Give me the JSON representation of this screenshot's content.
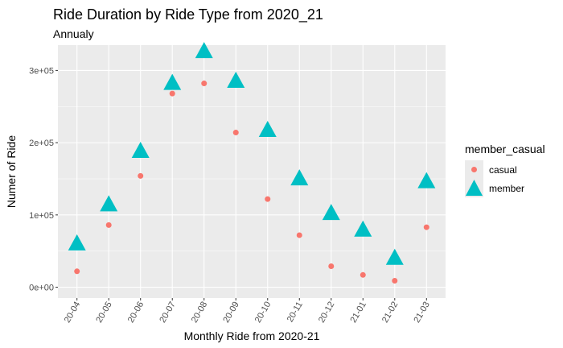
{
  "chart_data": {
    "type": "scatter",
    "title": "Ride Duration by Ride Type from 2020_21",
    "subtitle": "Annualy",
    "xlabel": "Monthly Ride from 2020-21",
    "ylabel": "Numer of Ride",
    "categories": [
      "20-04",
      "20-05",
      "20-06",
      "20-07",
      "20-08",
      "20-09",
      "20-10",
      "20-11",
      "20-12",
      "21-01",
      "21-02",
      "21-03"
    ],
    "y_ticks": [
      {
        "value": 0,
        "label": "0e+00"
      },
      {
        "value": 100000,
        "label": "1e+05"
      },
      {
        "value": 200000,
        "label": "2e+05"
      },
      {
        "value": 300000,
        "label": "3e+05"
      }
    ],
    "ylim": [
      -15000,
      335000
    ],
    "grid": true,
    "legend": {
      "title": "member_casual",
      "position": "right"
    },
    "series": [
      {
        "name": "casual",
        "shape": "circle",
        "color": "#F8766D",
        "values": [
          22000,
          86000,
          154000,
          268000,
          282000,
          214000,
          122000,
          72000,
          29000,
          17000,
          9000,
          83000
        ]
      },
      {
        "name": "member",
        "shape": "triangle",
        "color": "#00BFC4",
        "values": [
          61000,
          115000,
          189000,
          283000,
          327000,
          286000,
          218000,
          151000,
          103000,
          80000,
          41000,
          147000
        ]
      }
    ]
  }
}
